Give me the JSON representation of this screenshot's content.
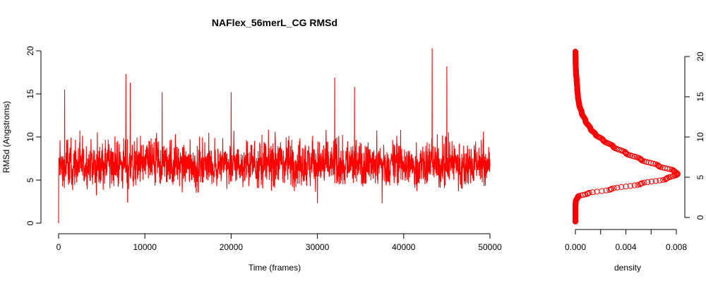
{
  "chart_data": [
    {
      "type": "line",
      "title": "NAFlex_56merL_CG RMSd",
      "xlabel": "Time (frames)",
      "ylabel": "RMSd (Angstroms)",
      "xlim": [
        0,
        50000
      ],
      "ylim": [
        0,
        20
      ],
      "x_ticks": [
        "0",
        "10000",
        "20000",
        "30000",
        "40000",
        "50000"
      ],
      "y_ticks": [
        "0",
        "5",
        "10",
        "15",
        "20"
      ],
      "series": [
        {
          "color": "#ff0000",
          "summary": {
            "n_frames": 50000,
            "start_value": 0,
            "mean": 6.3,
            "typical_low": 3.0,
            "max": 20.3
          },
          "peaks": [
            {
              "x": 700,
              "y": 15.5
            },
            {
              "x": 7800,
              "y": 17.3
            },
            {
              "x": 8300,
              "y": 16.3
            },
            {
              "x": 12000,
              "y": 15.2
            },
            {
              "x": 20000,
              "y": 15.2
            },
            {
              "x": 32000,
              "y": 16.9
            },
            {
              "x": 34300,
              "y": 15.8
            },
            {
              "x": 43300,
              "y": 20.3
            },
            {
              "x": 45000,
              "y": 18.2
            }
          ],
          "troughs": [
            {
              "x": 0,
              "y": 0
            },
            {
              "x": 8000,
              "y": 2.4
            },
            {
              "x": 30000,
              "y": 2.3
            },
            {
              "x": 37500,
              "y": 2.3
            }
          ]
        }
      ],
      "grid": false
    },
    {
      "type": "scatter",
      "xlabel": "density",
      "ylabel": "",
      "xlim": [
        0,
        0.008
      ],
      "ylim": [
        0,
        20
      ],
      "x_ticks": [
        "0.000",
        "0.004",
        "0.008"
      ],
      "y_ticks": [
        "0",
        "5",
        "10",
        "15",
        "20"
      ],
      "y_axis_side": "right",
      "series": [
        {
          "color": "#ff0000",
          "marker": "open-circle",
          "points": [
            {
              "x": 0.0,
              "y": -0.5
            },
            {
              "x": 0.0,
              "y": 0.5
            },
            {
              "x": 0.0,
              "y": 1.5
            },
            {
              "x": 3e-05,
              "y": 2.0
            },
            {
              "x": 0.0002,
              "y": 2.6
            },
            {
              "x": 0.001,
              "y": 3.0
            },
            {
              "x": 0.0028,
              "y": 3.5
            },
            {
              "x": 0.0052,
              "y": 4.2
            },
            {
              "x": 0.0072,
              "y": 4.8
            },
            {
              "x": 0.0081,
              "y": 5.4
            },
            {
              "x": 0.0078,
              "y": 5.8
            },
            {
              "x": 0.0066,
              "y": 6.4
            },
            {
              "x": 0.0052,
              "y": 7.2
            },
            {
              "x": 0.004,
              "y": 8.0
            },
            {
              "x": 0.003,
              "y": 8.8
            },
            {
              "x": 0.0022,
              "y": 9.6
            },
            {
              "x": 0.0016,
              "y": 10.3
            },
            {
              "x": 0.0012,
              "y": 11.0
            },
            {
              "x": 0.0008,
              "y": 12.0
            },
            {
              "x": 0.0005,
              "y": 13.0
            },
            {
              "x": 0.0003,
              "y": 14.0
            },
            {
              "x": 0.0002,
              "y": 15.0
            },
            {
              "x": 0.00015,
              "y": 16.0
            },
            {
              "x": 0.0001,
              "y": 17.0
            },
            {
              "x": 5e-05,
              "y": 18.0
            },
            {
              "x": 2e-05,
              "y": 19.0
            },
            {
              "x": 1e-05,
              "y": 20.0
            },
            {
              "x": 0.0,
              "y": 20.6
            }
          ]
        }
      ],
      "grid": false
    }
  ]
}
